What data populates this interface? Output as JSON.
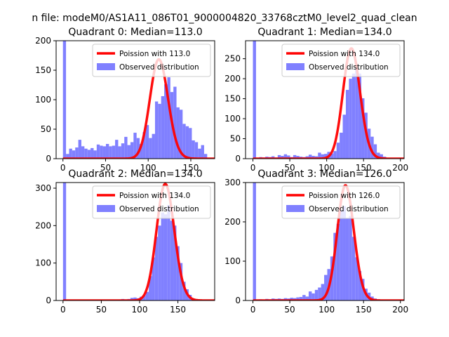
{
  "figure_title": "n file: modeM0/AS1A11_086T01_9000004820_33768cztM0_level2_quad_clean",
  "colors": {
    "histogram": "#8080ff",
    "poisson": "#ff0000",
    "axes": "#000000",
    "background": "#ffffff"
  },
  "chart_data": [
    {
      "type": "bar",
      "title": "Quadrant 0: Median=113.0",
      "median": 113.0,
      "xlim": [
        -8,
        178
      ],
      "ylim": [
        0,
        200
      ],
      "xticks": [
        0,
        50,
        100,
        150
      ],
      "yticks": [
        0,
        50,
        100,
        150,
        200
      ],
      "bin_width": 3.6,
      "hist_x": [
        0,
        3.6,
        7.2,
        10.8,
        14.4,
        18,
        21.6,
        25.2,
        28.8,
        32.4,
        36,
        39.6,
        43.2,
        46.8,
        50.4,
        54,
        57.6,
        61.2,
        64.8,
        68.4,
        72,
        75.6,
        79.2,
        82.8,
        86.4,
        90,
        93.6,
        97.2,
        100.8,
        104.4,
        108,
        111.6,
        115.2,
        118.8,
        122.4,
        126,
        129.6,
        133.2,
        136.8,
        140.4,
        144,
        147.6,
        151.2,
        154.8,
        158.4,
        162,
        165.6
      ],
      "hist_y": [
        200,
        8,
        17,
        14,
        19,
        32,
        21,
        17,
        15,
        18,
        14,
        24,
        22,
        21,
        25,
        21,
        22,
        32,
        21,
        26,
        37,
        23,
        28,
        44,
        35,
        25,
        45,
        57,
        35,
        42,
        97,
        93,
        106,
        126,
        138,
        113,
        122,
        87,
        83,
        59,
        55,
        52,
        31,
        28,
        17,
        23,
        8
      ],
      "legend": {
        "position": "upper right",
        "poisson_label": "Poission with 113.0",
        "observed_label": "Observed distribution"
      }
    },
    {
      "type": "bar",
      "title": "Quadrant 1: Median=134.0",
      "median": 134.0,
      "xlim": [
        -10,
        205
      ],
      "ylim": [
        0,
        295
      ],
      "xticks": [
        0,
        50,
        100,
        150,
        200
      ],
      "yticks": [
        0,
        50,
        100,
        150,
        200,
        250
      ],
      "bin_width": 4.2,
      "hist_x": [
        0,
        4.2,
        8.4,
        12.6,
        16.8,
        21,
        25.2,
        29.4,
        33.6,
        37.8,
        42,
        46.2,
        50.4,
        54.6,
        58.8,
        63,
        67.2,
        71.4,
        75.6,
        79.8,
        84,
        88.2,
        92.4,
        96.6,
        100.8,
        105,
        109.2,
        113.4,
        117.6,
        121.8,
        126,
        130.2,
        134.4,
        138.6,
        142.8,
        147,
        151.2,
        155.4,
        159.6,
        163.8,
        168,
        172.2,
        176.4
      ],
      "hist_y": [
        295,
        2,
        4,
        3,
        5,
        4,
        6,
        3,
        9,
        7,
        11,
        8,
        4,
        9,
        7,
        5,
        4,
        6,
        10,
        7,
        6,
        15,
        11,
        12,
        17,
        13,
        19,
        40,
        65,
        110,
        172,
        200,
        213,
        226,
        213,
        151,
        115,
        75,
        55,
        36,
        15,
        11,
        5
      ],
      "legend": {
        "position": "upper right",
        "poisson_label": "Poission with 134.0",
        "observed_label": "Observed distribution"
      }
    },
    {
      "type": "bar",
      "title": "Quadrant 2: Median=134.0",
      "median": 134.0,
      "xlim": [
        -9,
        198
      ],
      "ylim": [
        0,
        315
      ],
      "xticks": [
        0,
        50,
        100,
        150
      ],
      "yticks": [
        0,
        100,
        200,
        300
      ],
      "bin_width": 4.0,
      "hist_x": [
        0,
        4,
        8,
        12,
        16,
        20,
        24,
        28,
        32,
        36,
        40,
        44,
        48,
        52,
        56,
        60,
        64,
        68,
        72,
        76,
        80,
        84,
        88,
        92,
        96,
        100,
        104,
        108,
        112,
        116,
        120,
        124,
        128,
        132,
        136,
        140,
        144,
        148,
        152,
        156,
        160,
        164,
        168,
        172,
        176,
        180
      ],
      "hist_y": [
        315,
        1,
        1,
        1,
        1,
        1,
        1,
        1,
        1,
        1,
        1,
        1,
        1,
        1,
        1,
        1,
        1,
        1,
        2,
        4,
        3,
        4,
        7,
        8,
        6,
        10,
        14,
        23,
        65,
        115,
        170,
        200,
        235,
        230,
        255,
        213,
        200,
        145,
        100,
        50,
        30,
        15,
        5,
        2,
        1,
        1
      ],
      "legend": {
        "position": "upper right",
        "poisson_label": "Poission with 134.0",
        "observed_label": "Observed distribution"
      }
    },
    {
      "type": "bar",
      "title": "Quadrant 3: Median=126.0",
      "median": 126.0,
      "xlim": [
        -10,
        205
      ],
      "ylim": [
        0,
        300
      ],
      "xticks": [
        0,
        50,
        100,
        150,
        200
      ],
      "yticks": [
        0,
        100,
        200,
        300
      ],
      "bin_width": 4.2,
      "hist_x": [
        0,
        4.2,
        8.4,
        12.6,
        16.8,
        21,
        25.2,
        29.4,
        33.6,
        37.8,
        42,
        46.2,
        50.4,
        54.6,
        58.8,
        63,
        67.2,
        71.4,
        75.6,
        79.8,
        84,
        88.2,
        92.4,
        96.6,
        100.8,
        105,
        109.2,
        113.4,
        117.6,
        121.8,
        126,
        130.2,
        134.4,
        138.6,
        142.8,
        147,
        151.2,
        155.4,
        159.6,
        163.8,
        168,
        172.2,
        176.4,
        180.6
      ],
      "hist_y": [
        300,
        2,
        3,
        2,
        4,
        3,
        5,
        4,
        5,
        4,
        6,
        5,
        7,
        6,
        8,
        9,
        14,
        10,
        23,
        18,
        27,
        33,
        42,
        65,
        80,
        112,
        172,
        195,
        230,
        240,
        210,
        215,
        162,
        110,
        75,
        55,
        30,
        20,
        10,
        5,
        3,
        2,
        1,
        1
      ],
      "legend": {
        "position": "upper right",
        "poisson_label": "Poission with 126.0",
        "observed_label": "Observed distribution"
      }
    }
  ]
}
